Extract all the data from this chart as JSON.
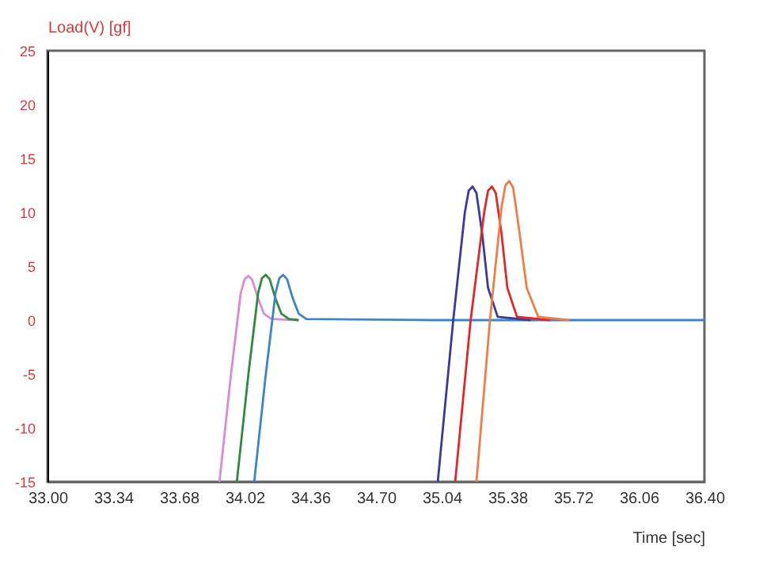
{
  "chart_data": {
    "type": "line",
    "xlabel": "Time [sec]",
    "ylabel": "Load(V) [gf]",
    "xlim": [
      33.0,
      36.4
    ],
    "xticks": [
      {
        "value": 33.0,
        "label": "33.00"
      },
      {
        "value": 33.34,
        "label": "33.34"
      },
      {
        "value": 33.68,
        "label": "33.68"
      },
      {
        "value": 34.02,
        "label": "34.02"
      },
      {
        "value": 34.36,
        "label": "34.36"
      },
      {
        "value": 34.7,
        "label": "34.70"
      },
      {
        "value": 35.04,
        "label": "35.04"
      },
      {
        "value": 35.38,
        "label": "35.38"
      },
      {
        "value": 35.72,
        "label": "35.72"
      },
      {
        "value": 36.06,
        "label": "36.06"
      },
      {
        "value": 36.4,
        "label": "36.40"
      }
    ],
    "ylim": [
      -15,
      25
    ],
    "yticks": [
      -15,
      -10,
      -5,
      0,
      5,
      10,
      15,
      20,
      25
    ],
    "series": [
      {
        "color": "#d98ad6",
        "x": [
          33.89,
          33.95,
          34.0,
          34.02,
          34.04,
          34.06,
          34.09,
          34.12,
          34.16,
          34.3
        ],
        "values": [
          -15,
          -5,
          2.5,
          3.8,
          4.1,
          3.7,
          2,
          0.6,
          0.1,
          0
        ]
      },
      {
        "color": "#2e8b3e",
        "x": [
          33.98,
          34.04,
          34.09,
          34.11,
          34.13,
          34.15,
          34.18,
          34.21,
          34.25,
          34.3
        ],
        "values": [
          -15,
          -5,
          2.5,
          3.9,
          4.2,
          3.8,
          2,
          0.6,
          0.1,
          0
        ]
      },
      {
        "color": "#3a86c8",
        "x": [
          34.07,
          34.13,
          34.18,
          34.2,
          34.22,
          34.24,
          34.27,
          34.3,
          34.34,
          35.0,
          36.4
        ],
        "values": [
          -15,
          -5,
          2.5,
          3.9,
          4.2,
          3.8,
          2,
          0.6,
          0.1,
          0,
          0
        ]
      },
      {
        "color": "#3a3a9c",
        "x": [
          35.02,
          35.1,
          35.16,
          35.18,
          35.2,
          35.22,
          35.25,
          35.28,
          35.33,
          35.5
        ],
        "values": [
          -15,
          0,
          10,
          12,
          12.4,
          11.8,
          8,
          3,
          0.3,
          0
        ]
      },
      {
        "color": "#e02828",
        "x": [
          35.11,
          35.19,
          35.26,
          35.28,
          35.3,
          35.32,
          35.35,
          35.38,
          35.43,
          35.6
        ],
        "values": [
          -15,
          0,
          10,
          12,
          12.4,
          11.8,
          8,
          3,
          0.3,
          0
        ]
      },
      {
        "color": "#f07c48",
        "x": [
          35.22,
          35.29,
          35.35,
          35.37,
          35.39,
          35.41,
          35.44,
          35.48,
          35.54,
          35.7
        ],
        "values": [
          -15,
          0,
          10.5,
          12.5,
          12.9,
          12.3,
          8.5,
          3,
          0.3,
          0
        ]
      }
    ]
  }
}
